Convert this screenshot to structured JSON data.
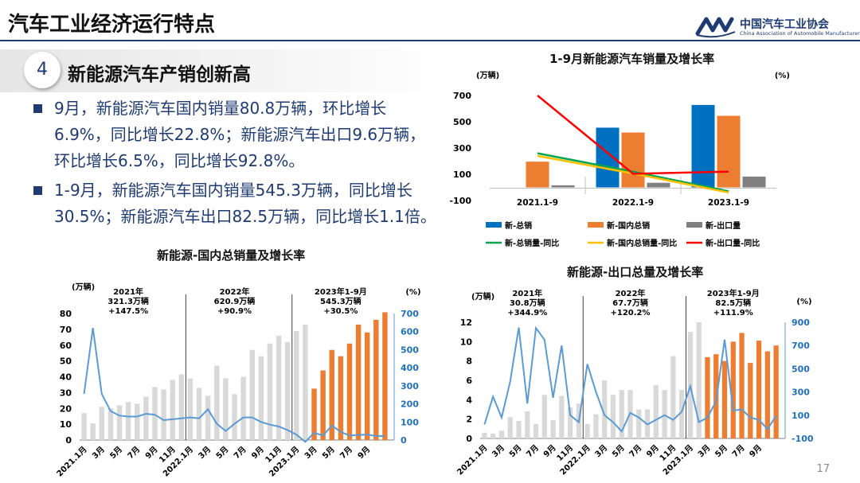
{
  "header": {
    "title": "汽车工业经济运行特点",
    "logo_cn": "中国汽车工业协会",
    "logo_en": "China Association of Automobile Manufacturers"
  },
  "section": {
    "number": "4",
    "title": "新能源汽车产销创新高"
  },
  "bullets": [
    "9月，新能源汽车国内销量80.8万辆，环比增长6.9%，同比增长22.8%；新能源汽车出口9.6万辆，环比增长6.5%，同比增长92.8%。",
    "1-9月，新能源汽车国内销量545.3万辆，同比增长30.5%；新能源汽车出口82.5万辆，同比增长1.1倍。"
  ],
  "page_number": "17",
  "colors": {
    "brand": "#1f3b73",
    "blue": "#0070c0",
    "orange": "#ed7d31",
    "gray": "#808080",
    "green": "#00a651",
    "yellow": "#ffc000",
    "red": "#ff0000",
    "light_gray": "#d9d9d9",
    "line_blue": "#5b9bd5"
  },
  "chart_data": [
    {
      "type": "bar",
      "title": "1-9月新能源汽车销量及增长率",
      "ylabel": "(万辆)",
      "y2label": "(%)",
      "ylim": [
        -100,
        700
      ],
      "y2lim": [
        0,
        400
      ],
      "y_ticks": [
        "700",
        "500",
        "300",
        "100",
        "-100"
      ],
      "y2_ticks": [
        "400",
        "300",
        "200",
        "100",
        "0"
      ],
      "categories": [
        "2021.1-9",
        "2022.1-9",
        "2023.1-9"
      ],
      "series": [
        {
          "name": "新-总销",
          "kind": "bar",
          "axis": "left",
          "color": "#0070c0",
          "values": [
            null,
            455,
            628
          ]
        },
        {
          "name": "新-国内总销",
          "kind": "bar",
          "axis": "left",
          "color": "#ed7d31",
          "values": [
            196,
            418,
            545.3
          ]
        },
        {
          "name": "新-出口量",
          "kind": "bar",
          "axis": "left",
          "color": "#808080",
          "values": [
            16,
            35,
            82.5
          ]
        },
        {
          "name": "新-总销量-同比",
          "kind": "line",
          "axis": "right",
          "color": "#00a651",
          "values": [
            180,
            110,
            35
          ]
        },
        {
          "name": "新-国内总销量-同比",
          "kind": "line",
          "axis": "right",
          "color": "#ffc000",
          "values": [
            170,
            103,
            30.5
          ]
        },
        {
          "name": "新-出口量-同比",
          "kind": "line",
          "axis": "right",
          "color": "#ff0000",
          "values": [
            400,
            102,
            110
          ]
        }
      ]
    },
    {
      "type": "bar",
      "title": "新能源-国内总销量及增长率",
      "ylabel": "(万辆)",
      "y2label": "(%)",
      "ylim": [
        0,
        80
      ],
      "y2lim": [
        0,
        700
      ],
      "y_ticks": [
        "80",
        "70",
        "60",
        "50",
        "40",
        "30",
        "20",
        "10",
        "0"
      ],
      "y2_ticks": [
        "700",
        "600",
        "500",
        "400",
        "300",
        "200",
        "100",
        "0"
      ],
      "x_labels": [
        "2021.1月",
        "3月",
        "5月",
        "7月",
        "9月",
        "11月",
        "2022.1月",
        "3月",
        "5月",
        "7月",
        "9月",
        "11月",
        "2023.1月",
        "3月",
        "5月",
        "7月",
        "9月"
      ],
      "values": [
        17,
        10.5,
        21,
        20,
        22,
        24,
        23,
        27.5,
        33.5,
        32,
        38,
        41.5,
        39,
        33,
        28,
        47,
        39,
        29,
        40,
        57,
        53,
        61,
        66,
        62,
        69,
        73,
        32.5,
        44,
        57,
        53,
        61,
        73,
        68,
        76,
        80.8
      ],
      "bar_colors": {
        "2021-2022": "#d9d9d9",
        "2023": "#ed7d31"
      },
      "growth_line": [
        255,
        620,
        255,
        160,
        135,
        130,
        130,
        145,
        140,
        110,
        115,
        120,
        125,
        120,
        170,
        90,
        50,
        90,
        125,
        125,
        100,
        85,
        75,
        55,
        30,
        -10,
        40,
        25,
        80,
        45,
        25,
        28,
        30,
        22,
        22.8
      ],
      "annotations": [
        {
          "label": "2021年",
          "value": "321.3万辆",
          "growth": "+147.5%"
        },
        {
          "label": "2022年",
          "value": "620.9万辆",
          "growth": "+90.9%"
        },
        {
          "label": "2023年1-9月",
          "value": "545.3万辆",
          "growth": "+30.5%"
        }
      ]
    },
    {
      "type": "bar",
      "title": "新能源-出口总量及增长率",
      "ylabel": "(万辆)",
      "y2label": "(%)",
      "ylim": [
        0,
        12
      ],
      "y2lim": [
        -100,
        900
      ],
      "y_ticks": [
        "12",
        "10",
        "8",
        "6",
        "4",
        "2",
        "0"
      ],
      "y2_ticks": [
        "900",
        "700",
        "500",
        "300",
        "100",
        "-100"
      ],
      "x_labels": [
        "2021.1月",
        "3月",
        "5月",
        "7月",
        "9月",
        "11月",
        "2022.1月",
        "3月",
        "5月",
        "7月",
        "9月",
        "11月",
        "2023.1月",
        "3月",
        "5月",
        "7月",
        "9月"
      ],
      "values": [
        0.6,
        0.5,
        0.8,
        2.2,
        1.8,
        2.8,
        1.5,
        4.5,
        1.9,
        4.4,
        3.2,
        3.6,
        1.5,
        2.5,
        6.0,
        4.5,
        5.0,
        5.0,
        3.0,
        3.0,
        5.5,
        5.0,
        8.5,
        5.0,
        11.0,
        12.0,
        8.4,
        8.7,
        8.0,
        10.0,
        10.9,
        7.8,
        10.1,
        9.0,
        9.6
      ],
      "bar_colors": {
        "2021-2022": "#d9d9d9",
        "2023": "#ed7d31"
      },
      "growth_line": [
        20,
        260,
        80,
        390,
        855,
        200,
        850,
        750,
        250,
        700,
        100,
        40,
        540,
        300,
        100,
        40,
        -40,
        120,
        80,
        20,
        60,
        100,
        60,
        130,
        350,
        40,
        80,
        220,
        750,
        140,
        150,
        80,
        60,
        -20,
        92.8
      ],
      "annotations": [
        {
          "label": "2021年",
          "value": "30.8万辆",
          "growth": "+344.9%"
        },
        {
          "label": "2022年",
          "value": "67.7万辆",
          "growth": "+120.2%"
        },
        {
          "label": "2023年1-9月",
          "value": "82.5万辆",
          "growth": "+111.9%"
        }
      ]
    }
  ]
}
